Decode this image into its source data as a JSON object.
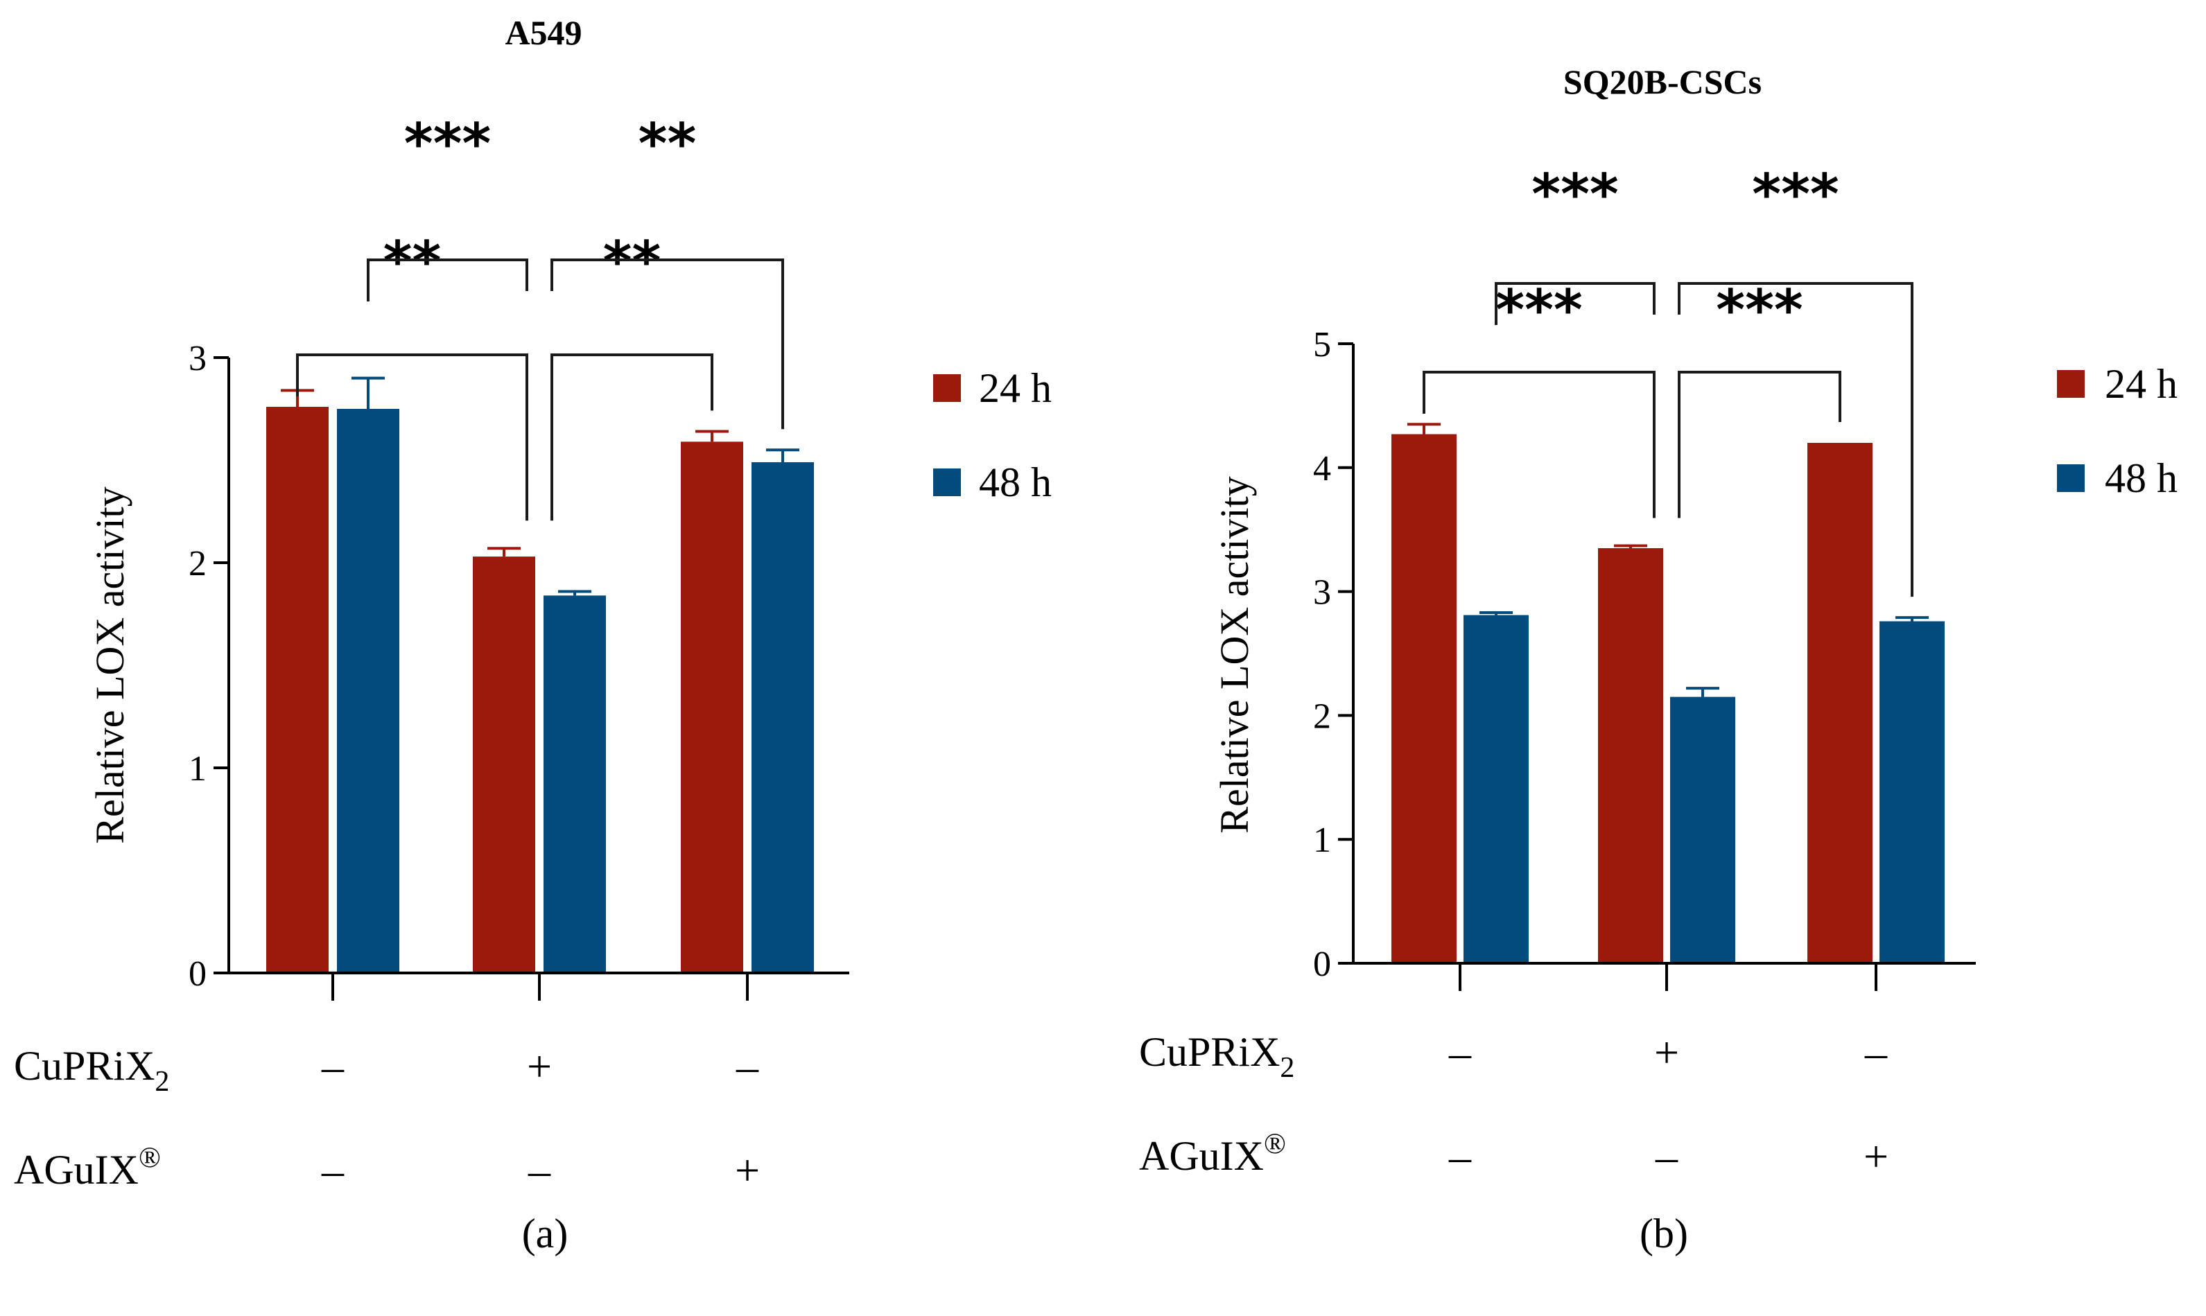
{
  "colors": {
    "h24": "#9c1a0b",
    "h48": "#034a7d"
  },
  "chart_data": [
    {
      "type": "bar",
      "title": "A549",
      "panel_label": "(a)",
      "ylabel": "Relative LOX activity",
      "ylim": [
        0,
        3
      ],
      "yticks": [
        "0",
        "1",
        "2",
        "3"
      ],
      "categories": [
        "CuPRiX2 − / AGuIX® −",
        "CuPRiX2 + / AGuIX® −",
        "CuPRiX2 − / AGuIX® +"
      ],
      "series": [
        {
          "name": "24 h",
          "values": [
            2.76,
            2.03,
            2.59
          ],
          "errors": [
            0.08,
            0.04,
            0.05
          ]
        },
        {
          "name": "48 h",
          "values": [
            2.75,
            1.84,
            2.49
          ],
          "errors": [
            0.15,
            0.02,
            0.06
          ]
        }
      ],
      "significance": [
        {
          "from": 0,
          "to": 1,
          "label": "**",
          "level": 1
        },
        {
          "from": 1,
          "to": 2,
          "label": "**",
          "level": 1
        },
        {
          "from": 0,
          "to": 1,
          "label": "***",
          "level": 2
        },
        {
          "from": 1,
          "to": 2,
          "label": "**",
          "level": 2
        }
      ],
      "treatments": [
        {
          "label": "CuPRiX",
          "sub": "2",
          "signs": [
            "–",
            "+",
            "–"
          ]
        },
        {
          "label": "AGuIX",
          "sup": "®",
          "signs": [
            "–",
            "–",
            "+"
          ]
        }
      ]
    },
    {
      "type": "bar",
      "title": "SQ20B-CSCs",
      "panel_label": "(b)",
      "ylabel": "Relative LOX activity",
      "ylim": [
        0,
        5
      ],
      "yticks": [
        "0",
        "1",
        "2",
        "3",
        "4",
        "5"
      ],
      "categories": [
        "CuPRiX2 − / AGuIX® −",
        "CuPRiX2 + / AGuIX® −",
        "CuPRiX2 − / AGuIX® +"
      ],
      "series": [
        {
          "name": "24 h",
          "values": [
            4.27,
            3.35,
            4.2
          ],
          "errors": [
            0.08,
            0.02,
            0.0
          ]
        },
        {
          "name": "48 h",
          "values": [
            2.81,
            2.15,
            2.76
          ],
          "errors": [
            0.02,
            0.07,
            0.03
          ]
        }
      ],
      "significance": [
        {
          "from": 0,
          "to": 1,
          "label": "***",
          "level": 1
        },
        {
          "from": 1,
          "to": 2,
          "label": "***",
          "level": 1
        },
        {
          "from": 0,
          "to": 1,
          "label": "***",
          "level": 2
        },
        {
          "from": 1,
          "to": 2,
          "label": "***",
          "level": 2
        }
      ],
      "treatments": [
        {
          "label": "CuPRiX",
          "sub": "2",
          "signs": [
            "–",
            "+",
            "–"
          ]
        },
        {
          "label": "AGuIX",
          "sup": "®",
          "signs": [
            "–",
            "–",
            "+"
          ]
        }
      ]
    }
  ]
}
